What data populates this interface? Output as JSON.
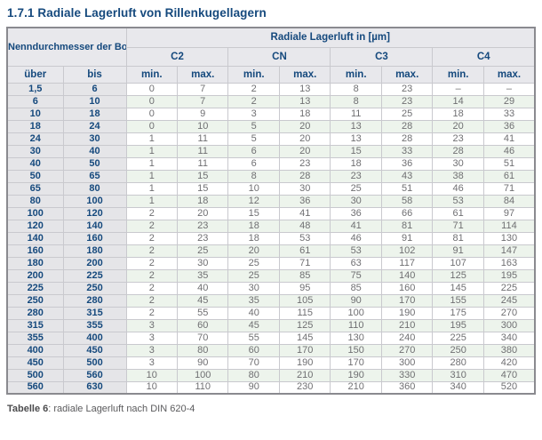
{
  "page": {
    "title": "1.7.1 Radiale Lagerluft von Rillenkugellagern"
  },
  "table": {
    "bore_header": "Nenndurchmesser der Bohrung d [mm]",
    "clearance_header": "Radiale Lagerluft in [µm]",
    "groups": [
      "C2",
      "CN",
      "C3",
      "C4"
    ],
    "col_over": "über",
    "col_to": "bis",
    "col_min": "min.",
    "col_max": "max.",
    "rows": [
      [
        "1,5",
        "6",
        "0",
        "7",
        "2",
        "13",
        "8",
        "23",
        "–",
        "–"
      ],
      [
        "6",
        "10",
        "0",
        "7",
        "2",
        "13",
        "8",
        "23",
        "14",
        "29"
      ],
      [
        "10",
        "18",
        "0",
        "9",
        "3",
        "18",
        "11",
        "25",
        "18",
        "33"
      ],
      [
        "18",
        "24",
        "0",
        "10",
        "5",
        "20",
        "13",
        "28",
        "20",
        "36"
      ],
      [
        "24",
        "30",
        "1",
        "11",
        "5",
        "20",
        "13",
        "28",
        "23",
        "41"
      ],
      [
        "30",
        "40",
        "1",
        "11",
        "6",
        "20",
        "15",
        "33",
        "28",
        "46"
      ],
      [
        "40",
        "50",
        "1",
        "11",
        "6",
        "23",
        "18",
        "36",
        "30",
        "51"
      ],
      [
        "50",
        "65",
        "1",
        "15",
        "8",
        "28",
        "23",
        "43",
        "38",
        "61"
      ],
      [
        "65",
        "80",
        "1",
        "15",
        "10",
        "30",
        "25",
        "51",
        "46",
        "71"
      ],
      [
        "80",
        "100",
        "1",
        "18",
        "12",
        "36",
        "30",
        "58",
        "53",
        "84"
      ],
      [
        "100",
        "120",
        "2",
        "20",
        "15",
        "41",
        "36",
        "66",
        "61",
        "97"
      ],
      [
        "120",
        "140",
        "2",
        "23",
        "18",
        "48",
        "41",
        "81",
        "71",
        "114"
      ],
      [
        "140",
        "160",
        "2",
        "23",
        "18",
        "53",
        "46",
        "91",
        "81",
        "130"
      ],
      [
        "160",
        "180",
        "2",
        "25",
        "20",
        "61",
        "53",
        "102",
        "91",
        "147"
      ],
      [
        "180",
        "200",
        "2",
        "30",
        "25",
        "71",
        "63",
        "117",
        "107",
        "163"
      ],
      [
        "200",
        "225",
        "2",
        "35",
        "25",
        "85",
        "75",
        "140",
        "125",
        "195"
      ],
      [
        "225",
        "250",
        "2",
        "40",
        "30",
        "95",
        "85",
        "160",
        "145",
        "225"
      ],
      [
        "250",
        "280",
        "2",
        "45",
        "35",
        "105",
        "90",
        "170",
        "155",
        "245"
      ],
      [
        "280",
        "315",
        "2",
        "55",
        "40",
        "115",
        "100",
        "190",
        "175",
        "270"
      ],
      [
        "315",
        "355",
        "3",
        "60",
        "45",
        "125",
        "110",
        "210",
        "195",
        "300"
      ],
      [
        "355",
        "400",
        "3",
        "70",
        "55",
        "145",
        "130",
        "240",
        "225",
        "340"
      ],
      [
        "400",
        "450",
        "3",
        "80",
        "60",
        "170",
        "150",
        "270",
        "250",
        "380"
      ],
      [
        "450",
        "500",
        "3",
        "90",
        "70",
        "190",
        "170",
        "300",
        "280",
        "420"
      ],
      [
        "500",
        "560",
        "10",
        "100",
        "80",
        "210",
        "190",
        "330",
        "310",
        "470"
      ],
      [
        "560",
        "630",
        "10",
        "110",
        "90",
        "230",
        "210",
        "360",
        "340",
        "520"
      ]
    ]
  },
  "caption": {
    "label": "Tabelle 6",
    "text": ": radiale Lagerluft nach DIN 620-4"
  },
  "colors": {
    "accent_blue": "#15497d",
    "header_bg": "#e8e8ec",
    "bore_col_bg": "#e5e5e8",
    "stripe_green": "#edf4ec",
    "data_text": "#6f6f72",
    "border_inner": "#c9c9ce",
    "border_group": "#95959a",
    "border_outer": "#8a8a8f"
  }
}
